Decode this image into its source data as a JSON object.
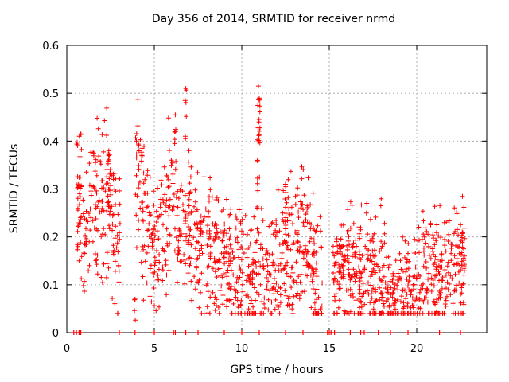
{
  "chart_data": {
    "type": "scatter",
    "title": "Day 356 of 2014, SRMTID for receiver nrmd",
    "xlabel": "GPS time / hours",
    "ylabel": "SRMTID / TECUs",
    "xlim": [
      0,
      24
    ],
    "ylim": [
      0,
      0.6
    ],
    "xticks": [
      0,
      5,
      10,
      15,
      20
    ],
    "yticks": [
      0,
      0.1,
      0.2,
      0.3,
      0.4,
      0.5,
      0.6
    ],
    "grid": true,
    "marker": "+",
    "color": "#ff0000",
    "series": [
      {
        "name": "SRMTID",
        "envelope": [
          {
            "x": 0.0,
            "y": 0.32
          },
          {
            "x": 0.7,
            "y": 0.26
          },
          {
            "x": 1.0,
            "y": 0.18
          },
          {
            "x": 1.5,
            "y": 0.29
          },
          {
            "x": 2.0,
            "y": 0.27
          },
          {
            "x": 2.4,
            "y": 0.31
          },
          {
            "x": 2.8,
            "y": 0.19
          },
          {
            "x": 3.0,
            "y": 0.19
          },
          {
            "x": 4.0,
            "y": 0.33
          },
          {
            "x": 4.5,
            "y": 0.24
          },
          {
            "x": 5.0,
            "y": 0.16
          },
          {
            "x": 5.5,
            "y": 0.22
          },
          {
            "x": 6.0,
            "y": 0.3
          },
          {
            "x": 6.5,
            "y": 0.2
          },
          {
            "x": 7.0,
            "y": 0.24
          },
          {
            "x": 7.5,
            "y": 0.19
          },
          {
            "x": 8.0,
            "y": 0.18
          },
          {
            "x": 8.5,
            "y": 0.15
          },
          {
            "x": 9.0,
            "y": 0.17
          },
          {
            "x": 9.5,
            "y": 0.13
          },
          {
            "x": 10.0,
            "y": 0.14
          },
          {
            "x": 10.5,
            "y": 0.11
          },
          {
            "x": 11.0,
            "y": 0.13
          },
          {
            "x": 11.5,
            "y": 0.11
          },
          {
            "x": 12.0,
            "y": 0.14
          },
          {
            "x": 12.5,
            "y": 0.2
          },
          {
            "x": 13.0,
            "y": 0.17
          },
          {
            "x": 13.5,
            "y": 0.21
          },
          {
            "x": 14.0,
            "y": 0.14
          },
          {
            "x": 14.5,
            "y": 0.09
          },
          {
            "x": 15.0,
            "y": 0.1
          },
          {
            "x": 15.5,
            "y": 0.12
          },
          {
            "x": 16.0,
            "y": 0.14
          },
          {
            "x": 16.5,
            "y": 0.14
          },
          {
            "x": 17.0,
            "y": 0.13
          },
          {
            "x": 17.5,
            "y": 0.09
          },
          {
            "x": 18.0,
            "y": 0.13
          },
          {
            "x": 18.5,
            "y": 0.08
          },
          {
            "x": 19.0,
            "y": 0.08
          },
          {
            "x": 19.5,
            "y": 0.09
          },
          {
            "x": 20.0,
            "y": 0.1
          },
          {
            "x": 20.5,
            "y": 0.12
          },
          {
            "x": 21.0,
            "y": 0.12
          },
          {
            "x": 21.5,
            "y": 0.13
          },
          {
            "x": 22.0,
            "y": 0.12
          },
          {
            "x": 22.5,
            "y": 0.13
          },
          {
            "x": 22.8,
            "y": 0.15
          }
        ],
        "spikes": [
          {
            "x": 0.8,
            "y": 0.415
          },
          {
            "x": 2.4,
            "y": 0.38
          },
          {
            "x": 4.3,
            "y": 0.385
          },
          {
            "x": 6.2,
            "y": 0.455
          },
          {
            "x": 6.8,
            "y": 0.51
          },
          {
            "x": 10.95,
            "y": 0.515
          },
          {
            "x": 11.0,
            "y": 0.49
          },
          {
            "x": 10.98,
            "y": 0.44
          },
          {
            "x": 10.9,
            "y": 0.36
          },
          {
            "x": 12.5,
            "y": 0.31
          },
          {
            "x": 3.9,
            "y": 0.07
          },
          {
            "x": 22.6,
            "y": 0.21
          }
        ],
        "zero_points_x": [
          0.4,
          0.55,
          0.7,
          0.8,
          3.0,
          3.9,
          5.0,
          6.1,
          6.2,
          6.8,
          7.5,
          9.0,
          10.0,
          11.0,
          12.5,
          13.5,
          14.9,
          15.0,
          15.1,
          15.3,
          16.2,
          16.8,
          17.0,
          17.8,
          18.5,
          19.5,
          21.3,
          22.5
        ]
      }
    ]
  }
}
